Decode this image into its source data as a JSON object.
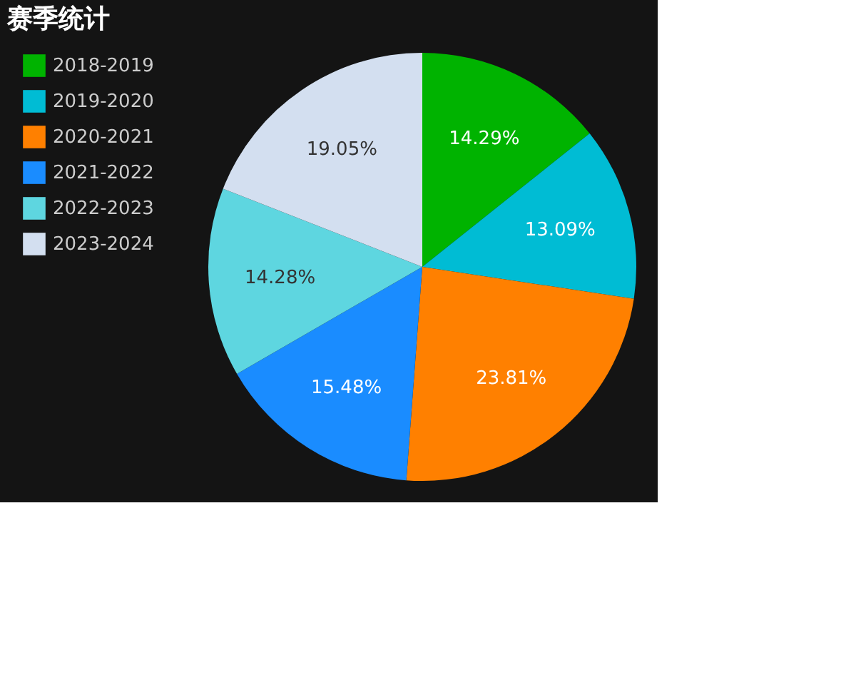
{
  "chart_data": {
    "type": "pie",
    "title": "赛季统计",
    "categories": [
      "2018-2019",
      "2019-2020",
      "2020-2021",
      "2021-2022",
      "2022-2023",
      "2023-2024"
    ],
    "values": [
      14.29,
      13.09,
      23.81,
      15.48,
      14.28,
      19.05
    ],
    "value_labels": [
      "14.29%",
      "13.09%",
      "23.81%",
      "15.48%",
      "14.28%",
      "19.05%"
    ],
    "colors": [
      "#00b300",
      "#00bcd4",
      "#ff8000",
      "#1a8cff",
      "#5ed6e0",
      "#d3dff0"
    ],
    "legend": "left"
  }
}
